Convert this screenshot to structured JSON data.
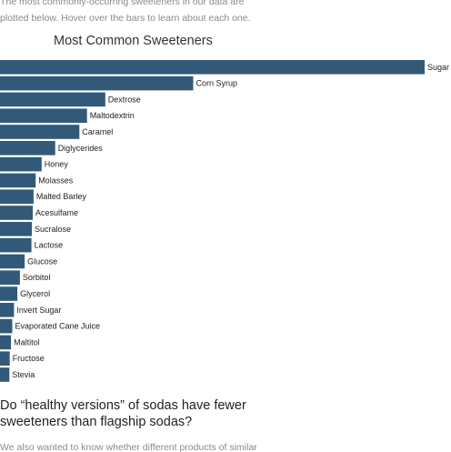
{
  "intro": {
    "text": "The most commonly-occurring sweeteners in our data are plotted below. Hover over the bars to learn about each one."
  },
  "colors": {
    "bar": "#325a78",
    "label": "#222222"
  },
  "chart_data": {
    "type": "bar",
    "orientation": "horizontal",
    "title": "Most Common Sweeteners",
    "xlabel": "",
    "ylabel": "",
    "xlim": [
      0,
      100
    ],
    "grid": false,
    "legend": "none",
    "categories": [
      "Sugar",
      "Corn Syrup",
      "Dextrose",
      "Maltodextrin",
      "Caramel",
      "Diglycerides",
      "Honey",
      "Molasses",
      "Malted Barley",
      "Acesulfame",
      "Sucralose",
      "Lactose",
      "Glucose",
      "Sorbitol",
      "Glycerol",
      "Invert Sugar",
      "Evaporated Cane Juice",
      "Maltitol",
      "Fructose",
      "Stevia"
    ],
    "values": [
      100,
      45.5,
      24.8,
      20.5,
      18.7,
      13.0,
      9.8,
      8.4,
      7.9,
      7.7,
      7.5,
      7.4,
      5.8,
      4.7,
      4.1,
      3.3,
      2.9,
      2.6,
      2.3,
      2.2
    ]
  },
  "section": {
    "heading": "Do “healthy versions” of sodas have fewer sweeteners than flagship sodas?",
    "text": "We also wanted to know whether different products of similar"
  }
}
